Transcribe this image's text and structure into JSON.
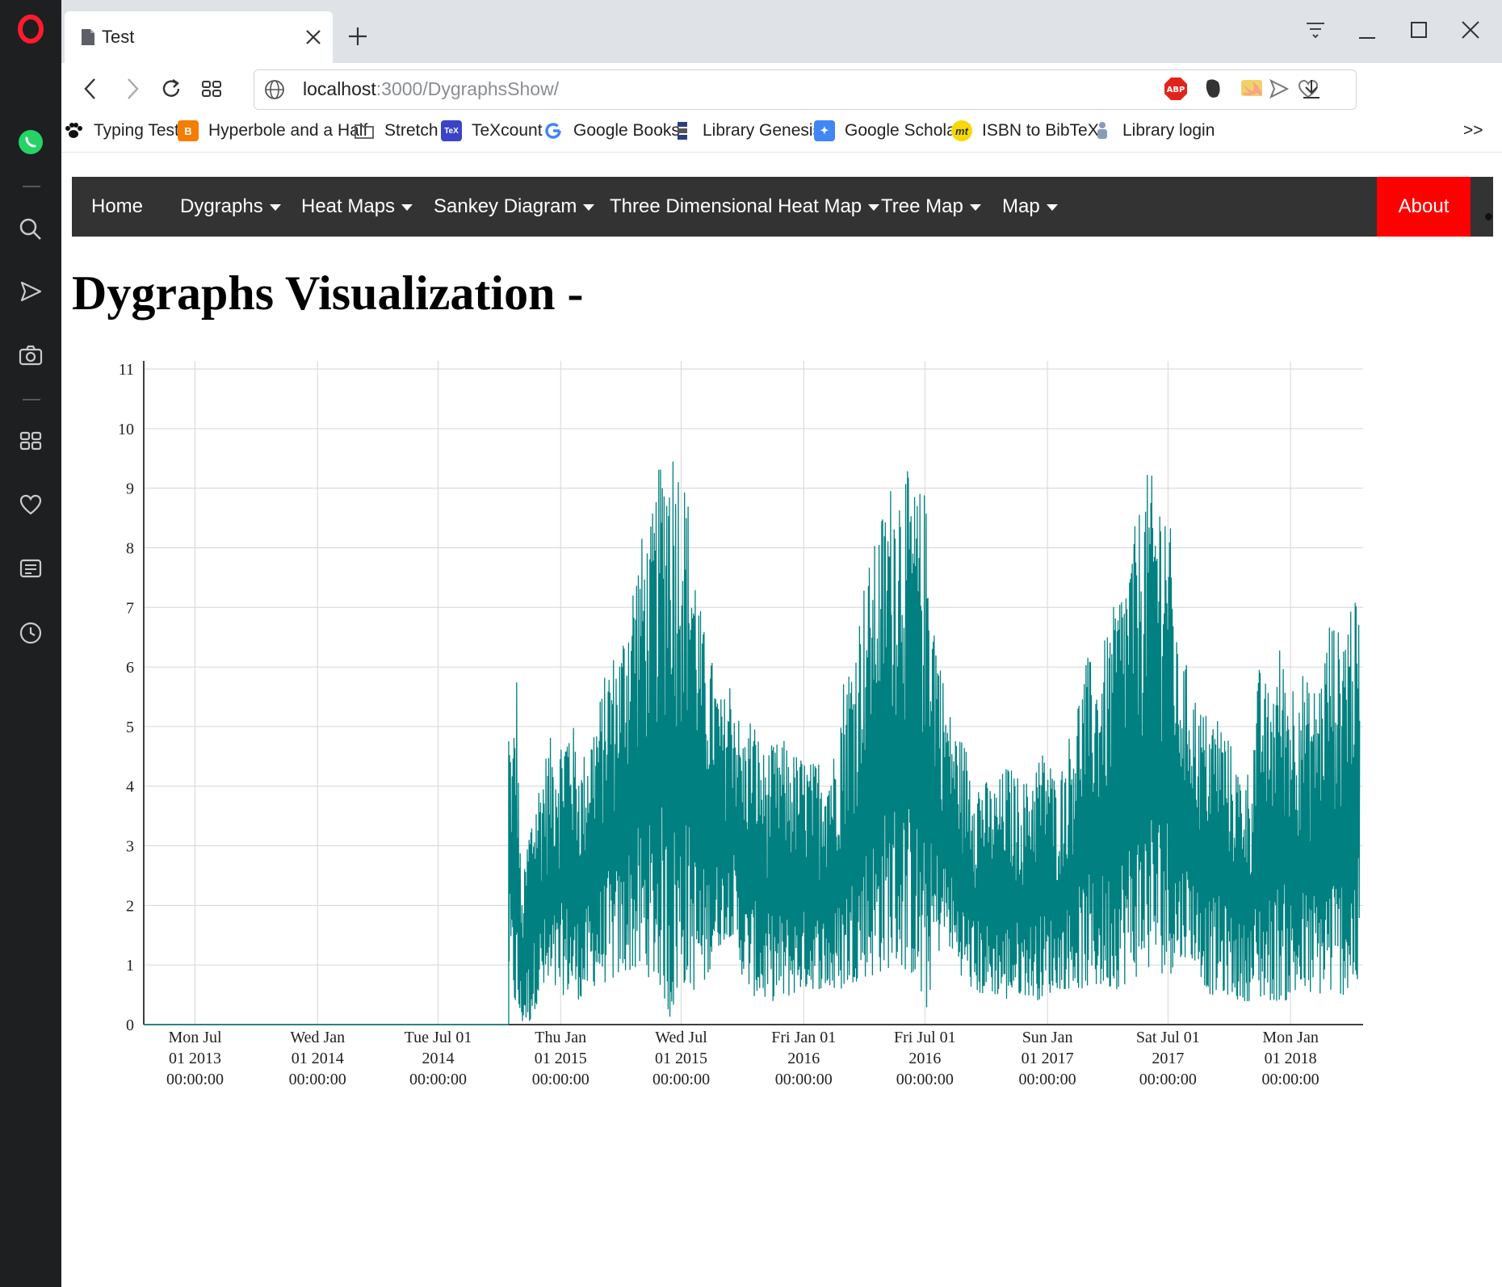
{
  "browser": {
    "tab_title": "Test",
    "url_host": "localhost",
    "url_path": ":3000/DygraphsShow/",
    "bookmarks": [
      {
        "label": "Typing Test",
        "icon": "paw-icon"
      },
      {
        "label": "Hyperbole and a Half",
        "icon": "blogger-icon"
      },
      {
        "label": "Stretch",
        "icon": "folder-icon"
      },
      {
        "label": "TeXcount",
        "icon": "texcount-icon"
      },
      {
        "label": "Google Books",
        "icon": "google-icon"
      },
      {
        "label": "Library Genesis",
        "icon": "library-genesis-icon"
      },
      {
        "label": "Google Scholar",
        "icon": "google-scholar-icon"
      },
      {
        "label": "ISBN to BibTeX",
        "icon": "mt-icon"
      },
      {
        "label": "Library login",
        "icon": "library-login-icon"
      }
    ],
    "bookmarks_more": ">>",
    "extensions": [
      "css-badge-icon",
      "send-icon",
      "heart-icon",
      "adblock-icon",
      "evernote-icon",
      "swift-icon",
      "download-icon"
    ]
  },
  "nav": {
    "items": [
      {
        "label": "Home",
        "dropdown": false
      },
      {
        "label": "Dygraphs",
        "dropdown": true
      },
      {
        "label": "Heat Maps",
        "dropdown": true
      },
      {
        "label": "Sankey Diagram",
        "dropdown": true
      },
      {
        "label": "Three Dimensional Heat Map",
        "dropdown": true
      },
      {
        "label": "Tree Map",
        "dropdown": true
      },
      {
        "label": "Map",
        "dropdown": true
      }
    ],
    "about": "About",
    "about_color": "#ff0000",
    "bg_color": "#333333"
  },
  "page": {
    "title": "Dygraphs Visualization -"
  },
  "chart_data": {
    "type": "line",
    "title": "",
    "xlabel": "",
    "ylabel": "",
    "series_color": "#008080",
    "ylim": [
      0,
      11
    ],
    "y_ticks": [
      "0",
      "1",
      "2",
      "3",
      "4",
      "5",
      "6",
      "7",
      "8",
      "9",
      "10",
      "11"
    ],
    "x_range": [
      "2013-04-15",
      "2018-04-20"
    ],
    "x_ticks": [
      {
        "date": "2013-07-01",
        "lines": [
          "Mon Jul",
          "01 2013",
          "00:00:00"
        ]
      },
      {
        "date": "2014-01-01",
        "lines": [
          "Wed Jan",
          "01 2014",
          "00:00:00"
        ]
      },
      {
        "date": "2014-07-01",
        "lines": [
          "Tue Jul 01",
          "2014",
          "00:00:00"
        ]
      },
      {
        "date": "2015-01-01",
        "lines": [
          "Thu Jan",
          "01 2015",
          "00:00:00"
        ]
      },
      {
        "date": "2015-07-01",
        "lines": [
          "Wed Jul",
          "01 2015",
          "00:00:00"
        ]
      },
      {
        "date": "2016-01-01",
        "lines": [
          "Fri Jan 01",
          "2016",
          "00:00:00"
        ]
      },
      {
        "date": "2016-07-01",
        "lines": [
          "Fri Jul 01",
          "2016",
          "00:00:00"
        ]
      },
      {
        "date": "2017-01-01",
        "lines": [
          "Sun Jan",
          "01 2017",
          "00:00:00"
        ]
      },
      {
        "date": "2017-07-01",
        "lines": [
          "Sat Jul 01",
          "2017",
          "00:00:00"
        ]
      },
      {
        "date": "2018-01-01",
        "lines": [
          "Mon Jan",
          "01 2018",
          "00:00:00"
        ]
      }
    ],
    "grid": true,
    "series": [
      {
        "x": [
          "2014-10-15",
          "2014-10-20",
          "2014-10-27",
          "2014-11-03",
          "2014-11-15",
          "2014-12-01",
          "2014-12-15",
          "2015-01-01",
          "2015-01-15",
          "2015-02-01",
          "2015-02-15",
          "2015-03-01",
          "2015-03-15",
          "2015-04-01",
          "2015-04-15",
          "2015-05-01",
          "2015-05-15",
          "2015-06-01",
          "2015-06-15",
          "2015-07-01",
          "2015-07-15",
          "2015-08-01",
          "2015-08-15",
          "2015-09-01",
          "2015-09-15",
          "2015-10-01",
          "2015-10-15",
          "2015-11-01",
          "2015-11-15",
          "2015-12-01",
          "2015-12-15",
          "2016-01-01",
          "2016-01-15",
          "2016-02-01",
          "2016-02-15",
          "2016-03-01",
          "2016-03-15",
          "2016-04-01",
          "2016-04-15",
          "2016-05-01",
          "2016-05-15",
          "2016-06-01",
          "2016-06-15",
          "2016-07-01",
          "2016-07-15",
          "2016-08-01",
          "2016-08-15",
          "2016-09-01",
          "2016-09-15",
          "2016-10-01",
          "2016-10-15",
          "2016-11-01",
          "2016-11-15",
          "2016-12-01",
          "2016-12-15",
          "2017-01-01",
          "2017-01-15",
          "2017-02-01",
          "2017-02-15",
          "2017-03-01",
          "2017-03-15",
          "2017-04-01",
          "2017-04-15",
          "2017-05-01",
          "2017-05-15",
          "2017-06-01",
          "2017-06-15",
          "2017-07-01",
          "2017-07-15",
          "2017-08-01",
          "2017-08-15",
          "2017-09-01",
          "2017-09-15",
          "2017-10-01",
          "2017-10-15",
          "2017-11-01",
          "2017-11-15",
          "2017-12-01",
          "2017-12-15",
          "2018-01-01",
          "2018-01-15",
          "2018-02-01",
          "2018-02-15",
          "2018-03-01",
          "2018-03-15",
          "2018-04-01",
          "2018-04-15"
        ],
        "low": [
          0.8,
          0.6,
          0.0,
          0.0,
          0.0,
          0.5,
          0.4,
          0.5,
          0.5,
          0.4,
          0.6,
          0.7,
          0.7,
          0.8,
          0.9,
          0.8,
          0.8,
          0.6,
          0.0,
          0.7,
          0.6,
          0.5,
          1.0,
          1.4,
          1.5,
          0.8,
          0.5,
          0.4,
          0.4,
          0.4,
          0.5,
          0.6,
          0.6,
          0.6,
          0.5,
          0.6,
          0.7,
          0.8,
          0.8,
          0.9,
          1.0,
          0.9,
          0.8,
          0.0,
          1.0,
          1.5,
          1.0,
          0.7,
          0.5,
          0.5,
          0.5,
          0.4,
          0.5,
          0.5,
          0.4,
          0.5,
          0.6,
          0.6,
          0.6,
          0.6,
          0.6,
          0.6,
          0.6,
          0.7,
          0.8,
          0.9,
          0.9,
          0.8,
          1.0,
          1.2,
          0.9,
          0.5,
          0.5,
          0.5,
          0.4,
          0.4,
          0.4,
          0.4,
          0.4,
          0.4,
          0.4,
          0.5,
          0.5,
          0.5,
          0.5,
          0.5,
          0.6
        ],
        "high": [
          5.3,
          4.5,
          6.0,
          2.0,
          3.5,
          4.2,
          4.8,
          4.9,
          5.3,
          4.4,
          5.0,
          5.5,
          6.2,
          6.4,
          7.4,
          8.2,
          8.3,
          9.6,
          10.1,
          9.5,
          8.7,
          6.8,
          6.2,
          5.4,
          6.0,
          4.8,
          5.3,
          4.6,
          4.7,
          4.8,
          4.6,
          4.5,
          4.4,
          4.6,
          4.6,
          5.9,
          6.3,
          7.5,
          8.0,
          8.8,
          9.3,
          9.4,
          9.0,
          9.0,
          7.1,
          5.5,
          5.0,
          4.7,
          4.3,
          4.1,
          4.0,
          4.4,
          4.2,
          4.1,
          4.5,
          4.7,
          4.0,
          4.8,
          5.5,
          6.2,
          6.0,
          6.6,
          7.2,
          7.8,
          8.5,
          9.3,
          9.1,
          9.1,
          6.3,
          6.0,
          5.4,
          5.2,
          5.3,
          4.8,
          4.3,
          4.3,
          6.0,
          5.6,
          6.4,
          5.8,
          6.1,
          5.6,
          5.9,
          6.9,
          6.6,
          7.3,
          6.9
        ]
      }
    ]
  }
}
